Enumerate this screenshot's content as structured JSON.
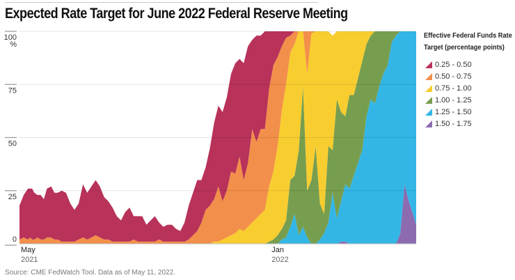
{
  "header": {
    "title": "Expected Rate Target for June 2022 Federal Reserve Meeting"
  },
  "legend": {
    "title_line1": "Effective Federal Funds Rate",
    "title_line2": "Target (percentage points)"
  },
  "source": "Source: CME FedWatch Tool. Data as of May 11, 2022.",
  "chart_data": {
    "type": "area",
    "stacked": true,
    "title": "Expected Rate Target for June 2022 Federal Reserve Meeting",
    "xlabel": "",
    "ylabel": "%",
    "ylim": [
      0,
      100
    ],
    "yticks": [
      {
        "value": 0,
        "label": "0"
      },
      {
        "value": 25,
        "label": "25"
      },
      {
        "value": 50,
        "label": "50"
      },
      {
        "value": 75,
        "label": "75"
      },
      {
        "value": 100,
        "label": "100"
      }
    ],
    "y_unit_label": "%",
    "xlim_days": [
      0,
      375
    ],
    "xticks": [
      {
        "day": 0,
        "month": "May",
        "year": "2021"
      },
      {
        "day": 237,
        "month": "Jan",
        "year": "2022"
      }
    ],
    "grid": true,
    "legend_position": "right",
    "legend_title": "Effective Federal Funds Rate Target (percentage points)",
    "note": "x values are days since May 1, 2021; series values are probabilities in percent, stacked bottom-to-top from highest to lowest rate range",
    "x": [
      0,
      4,
      8,
      10,
      12,
      14,
      17,
      20,
      23,
      26,
      30,
      33,
      36,
      40,
      44,
      48,
      52,
      56,
      60,
      64,
      68,
      72,
      76,
      80,
      84,
      88,
      92,
      96,
      100,
      104,
      108,
      112,
      116,
      120,
      124,
      128,
      132,
      136,
      140,
      144,
      148,
      152,
      156,
      160,
      164,
      168,
      172,
      176,
      180,
      184,
      188,
      192,
      196,
      200,
      204,
      208,
      212,
      216,
      220,
      224,
      228,
      232,
      236,
      240,
      244,
      248,
      252,
      256,
      260,
      264,
      268,
      272,
      276,
      280,
      284,
      288,
      292,
      296,
      300,
      304,
      308,
      312,
      316,
      320,
      324,
      328,
      332,
      336,
      340,
      344,
      348,
      352,
      356,
      360,
      364,
      368,
      372,
      375
    ],
    "series": [
      {
        "name": "1.50 - 1.75",
        "color": "#8C6BB1",
        "values": [
          0,
          0,
          0,
          0,
          0,
          0,
          0,
          0,
          0,
          0,
          0,
          0,
          0,
          0,
          0,
          0,
          0,
          0,
          0,
          0,
          0,
          0,
          0,
          0,
          0,
          0,
          0,
          0,
          0,
          0,
          0,
          0,
          0,
          0,
          0,
          0,
          0,
          0,
          0,
          0,
          0,
          0,
          0,
          0,
          0,
          0,
          0,
          0,
          0,
          0,
          0,
          0,
          0,
          0,
          0,
          0,
          0,
          0,
          0,
          0,
          0,
          0,
          0,
          0,
          0,
          0,
          0,
          0,
          0,
          0,
          0,
          0,
          0,
          0,
          0,
          0,
          0,
          0,
          0,
          1,
          1,
          0,
          0,
          0,
          0,
          0,
          0,
          0,
          0,
          0,
          0,
          0,
          0,
          5,
          28,
          20,
          14,
          9
        ]
      },
      {
        "name": "1.25 - 1.50",
        "color": "#33B6E5",
        "values": [
          0,
          0,
          0,
          0,
          0,
          0,
          0,
          0,
          0,
          0,
          0,
          0,
          0,
          0,
          0,
          0,
          0,
          0,
          0,
          0,
          0,
          0,
          0,
          0,
          0,
          0,
          0,
          0,
          0,
          0,
          0,
          0,
          0,
          0,
          0,
          0,
          0,
          0,
          0,
          0,
          0,
          0,
          0,
          0,
          0,
          0,
          0,
          0,
          0,
          0,
          0,
          0,
          0,
          0,
          0,
          0,
          0,
          0,
          0,
          0,
          0,
          0,
          0,
          0,
          0,
          2,
          3,
          8,
          14,
          4,
          8,
          3,
          0,
          0,
          2,
          5,
          10,
          24,
          12,
          19,
          27,
          26,
          32,
          38,
          44,
          60,
          68,
          66,
          74,
          80,
          84,
          95,
          98,
          95,
          72,
          80,
          86,
          91
        ]
      },
      {
        "name": "1.00 - 1.25",
        "color": "#779E4F",
        "values": [
          0,
          0,
          0,
          0,
          0,
          0,
          0,
          0,
          0,
          0,
          0,
          0,
          0,
          0,
          0,
          0,
          0,
          0,
          0,
          0,
          0,
          0,
          0,
          0,
          0,
          0,
          0,
          0,
          0,
          0,
          0,
          0,
          0,
          0,
          0,
          0,
          0,
          0,
          0,
          0,
          0,
          0,
          0,
          0,
          0,
          0,
          0,
          0,
          0,
          0,
          0,
          0,
          0,
          0,
          0,
          0,
          0,
          0,
          0,
          0,
          0,
          0,
          1,
          2,
          4,
          5,
          8,
          22,
          18,
          40,
          66,
          22,
          30,
          46,
          17,
          9,
          36,
          20,
          56,
          42,
          32,
          44,
          38,
          40,
          42,
          34,
          30,
          34,
          26,
          20,
          16,
          5,
          2,
          0,
          0,
          0,
          0,
          0
        ]
      },
      {
        "name": "0.75 - 1.00",
        "color": "#F8CD2F",
        "values": [
          0,
          0,
          0,
          0,
          0,
          0,
          0,
          0,
          0,
          0,
          0,
          0,
          0,
          0,
          0,
          0,
          0,
          0,
          0,
          0,
          0,
          0,
          0,
          0,
          0,
          0,
          0,
          0,
          0,
          0,
          0,
          0,
          0,
          0,
          0,
          0,
          0,
          0,
          0,
          0,
          0,
          0,
          0,
          0,
          0,
          0,
          0,
          0,
          0,
          1,
          1,
          2,
          3,
          4,
          5,
          7,
          6,
          8,
          10,
          12,
          14,
          16,
          26,
          32,
          42,
          56,
          64,
          60,
          62,
          56,
          26,
          55,
          69,
          54,
          81,
          86,
          54,
          54,
          32,
          38,
          40,
          30,
          30,
          22,
          14,
          6,
          2,
          0,
          0,
          0,
          0,
          0,
          0,
          0,
          0,
          0,
          0,
          0
        ]
      },
      {
        "name": "0.50 - 0.75",
        "color": "#F28F4A",
        "values": [
          2,
          3,
          2,
          3,
          2,
          2,
          3,
          2,
          2,
          3,
          3,
          2,
          2,
          1,
          1,
          1,
          1,
          2,
          3,
          2,
          3,
          4,
          3,
          2,
          2,
          1,
          1,
          1,
          1,
          1,
          2,
          1,
          1,
          1,
          1,
          1,
          2,
          1,
          1,
          1,
          1,
          1,
          1,
          2,
          4,
          6,
          10,
          16,
          18,
          20,
          26,
          18,
          22,
          30,
          28,
          34,
          24,
          30,
          44,
          36,
          40,
          38,
          46,
          50,
          42,
          30,
          22,
          8,
          6,
          0,
          0,
          20,
          1,
          0,
          0,
          0,
          0,
          0,
          0,
          0,
          0,
          0,
          0,
          0,
          0,
          0,
          0,
          0,
          0,
          0,
          0,
          0,
          0,
          0,
          0,
          0,
          0,
          0
        ]
      },
      {
        "name": "0.25 - 0.50",
        "color": "#B8325A",
        "values": [
          16,
          20,
          24,
          23,
          24,
          22,
          20,
          21,
          19,
          23,
          24,
          22,
          22,
          24,
          23,
          18,
          15,
          17,
          25,
          22,
          24,
          26,
          24,
          20,
          18,
          16,
          12,
          10,
          14,
          16,
          11,
          12,
          12,
          8,
          10,
          12,
          8,
          7,
          8,
          8,
          6,
          5,
          9,
          16,
          20,
          24,
          20,
          20,
          27,
          36,
          38,
          42,
          44,
          46,
          52,
          46,
          55,
          55,
          42,
          50,
          44,
          46,
          27,
          16,
          12,
          7,
          3,
          2,
          0,
          0,
          0,
          0,
          0,
          0,
          0,
          0,
          0,
          0,
          0,
          0,
          0,
          0,
          0,
          0,
          0,
          0,
          0,
          0,
          0,
          0,
          0,
          0,
          0,
          0,
          0,
          0,
          0,
          0
        ]
      }
    ]
  },
  "legend_items": [
    {
      "label": "0.25 - 0.50",
      "color": "#B8325A"
    },
    {
      "label": "0.50 - 0.75",
      "color": "#F28F4A"
    },
    {
      "label": "0.75 - 1.00",
      "color": "#F8CD2F"
    },
    {
      "label": "1.00 - 1.25",
      "color": "#779E4F"
    },
    {
      "label": "1.25 - 1.50",
      "color": "#33B6E5"
    },
    {
      "label": "1.50 - 1.75",
      "color": "#8C6BB1"
    }
  ]
}
